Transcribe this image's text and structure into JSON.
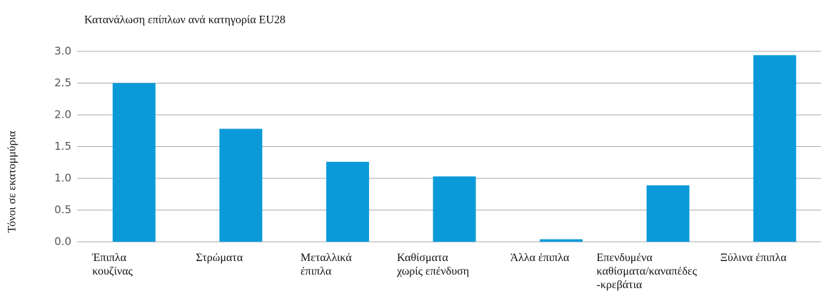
{
  "chart_data": {
    "type": "bar",
    "title": "Κατανάλωση επίπλων ανά κατηγορία EU28",
    "y_label": "Τόνοι σε εκατομμύρια",
    "categories": [
      "Έπιπλα\nκουζίνας",
      "Στρώματα",
      "Μεταλλικά\nέπιπλα",
      "Καθίσματα\nχωρίς επένδυση",
      "Άλλα έπιπλα",
      "Επενδυμένα\nκαθίσματα/καναπέδες\n-κρεβάτια",
      "Ξύλινα έπιπλα"
    ],
    "values": [
      2.5,
      1.78,
      1.26,
      1.03,
      0.04,
      0.89,
      2.94
    ],
    "color": "#0a9ad9",
    "ylim": [
      0,
      3
    ],
    "yticks": [
      {
        "value": 0,
        "label": "0.0"
      },
      {
        "value": 0.5,
        "label": "0.5"
      },
      {
        "value": 1,
        "label": "1.0"
      },
      {
        "value": 1.5,
        "label": "1.5"
      },
      {
        "value": 2,
        "label": "2.0"
      },
      {
        "value": 2.5,
        "label": "2.5"
      },
      {
        "value": 3,
        "label": "3.0"
      }
    ],
    "grid": true
  }
}
